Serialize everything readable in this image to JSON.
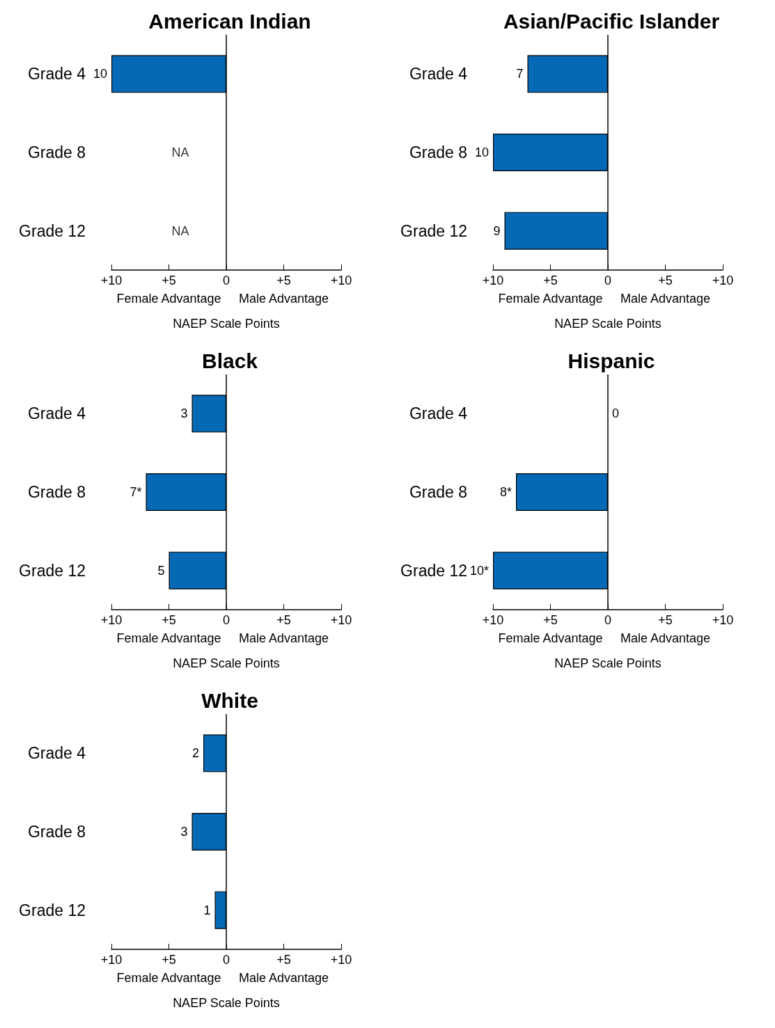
{
  "chart_data": [
    {
      "type": "bar",
      "orientation": "horizontal",
      "title": "American Indian",
      "categories": [
        "Grade 4",
        "Grade 8",
        "Grade 12"
      ],
      "values": [
        10,
        null,
        null
      ],
      "value_labels": [
        "10",
        "NA",
        "NA"
      ],
      "ref_lines": [
        {
          "axis": "x",
          "value": 0
        }
      ],
      "color": "#0569b5",
      "xlim": [
        10,
        -10
      ],
      "xticks": [
        {
          "value": -10,
          "label": "+10"
        },
        {
          "value": -5,
          "label": "+5"
        },
        {
          "value": 0,
          "label": "0"
        },
        {
          "value": 5,
          "label": "+5"
        },
        {
          "value": 10,
          "label": "+10"
        }
      ],
      "xlabel": "NAEP Scale Points",
      "annotations": [
        "Female Advantage",
        "Male Advantage"
      ],
      "grid": false
    },
    {
      "type": "bar",
      "orientation": "horizontal",
      "title": "Asian/Pacific Islander",
      "categories": [
        "Grade 4",
        "Grade 8",
        "Grade 12"
      ],
      "values": [
        7,
        10,
        9
      ],
      "value_labels": [
        "7",
        "10",
        "9"
      ],
      "ref_lines": [
        {
          "axis": "x",
          "value": 0
        }
      ],
      "color": "#0569b5",
      "xlim": [
        10,
        -10
      ],
      "xticks": [
        {
          "value": -10,
          "label": "+10"
        },
        {
          "value": -5,
          "label": "+5"
        },
        {
          "value": 0,
          "label": "0"
        },
        {
          "value": 5,
          "label": "+5"
        },
        {
          "value": 10,
          "label": "+10"
        }
      ],
      "xlabel": "NAEP Scale Points",
      "annotations": [
        "Female Advantage",
        "Male Advantage"
      ],
      "grid": false
    },
    {
      "type": "bar",
      "orientation": "horizontal",
      "title": "Black",
      "categories": [
        "Grade 4",
        "Grade 8",
        "Grade 12"
      ],
      "values": [
        3,
        7,
        5
      ],
      "value_labels": [
        "3",
        "7*",
        "5"
      ],
      "ref_lines": [
        {
          "axis": "x",
          "value": 0
        }
      ],
      "color": "#0569b5",
      "xlim": [
        10,
        -10
      ],
      "xticks": [
        {
          "value": -10,
          "label": "+10"
        },
        {
          "value": -5,
          "label": "+5"
        },
        {
          "value": 0,
          "label": "0"
        },
        {
          "value": 5,
          "label": "+5"
        },
        {
          "value": 10,
          "label": "+10"
        }
      ],
      "xlabel": "NAEP Scale Points",
      "annotations": [
        "Female Advantage",
        "Male Advantage"
      ],
      "grid": false
    },
    {
      "type": "bar",
      "orientation": "horizontal",
      "title": "Hispanic",
      "categories": [
        "Grade 4",
        "Grade 8",
        "Grade 12"
      ],
      "values": [
        0,
        8,
        10
      ],
      "value_labels": [
        "0",
        "8*",
        "10*"
      ],
      "ref_lines": [
        {
          "axis": "x",
          "value": 0
        }
      ],
      "color": "#0569b5",
      "xlim": [
        10,
        -10
      ],
      "xticks": [
        {
          "value": -10,
          "label": "+10"
        },
        {
          "value": -5,
          "label": "+5"
        },
        {
          "value": 0,
          "label": "0"
        },
        {
          "value": 5,
          "label": "+5"
        },
        {
          "value": 10,
          "label": "+10"
        }
      ],
      "xlabel": "NAEP Scale Points",
      "annotations": [
        "Female Advantage",
        "Male Advantage"
      ],
      "grid": false
    },
    {
      "type": "bar",
      "orientation": "horizontal",
      "title": "White",
      "categories": [
        "Grade 4",
        "Grade 8",
        "Grade 12"
      ],
      "values": [
        2,
        3,
        1
      ],
      "value_labels": [
        "2",
        "3",
        "1"
      ],
      "ref_lines": [
        {
          "axis": "x",
          "value": 0
        }
      ],
      "color": "#0569b5",
      "xlim": [
        10,
        -10
      ],
      "xticks": [
        {
          "value": -10,
          "label": "+10"
        },
        {
          "value": -5,
          "label": "+5"
        },
        {
          "value": 0,
          "label": "0"
        },
        {
          "value": 5,
          "label": "+5"
        },
        {
          "value": 10,
          "label": "+10"
        }
      ],
      "xlabel": "NAEP Scale Points",
      "annotations": [
        "Female Advantage",
        "Male Advantage"
      ],
      "grid": false
    }
  ]
}
